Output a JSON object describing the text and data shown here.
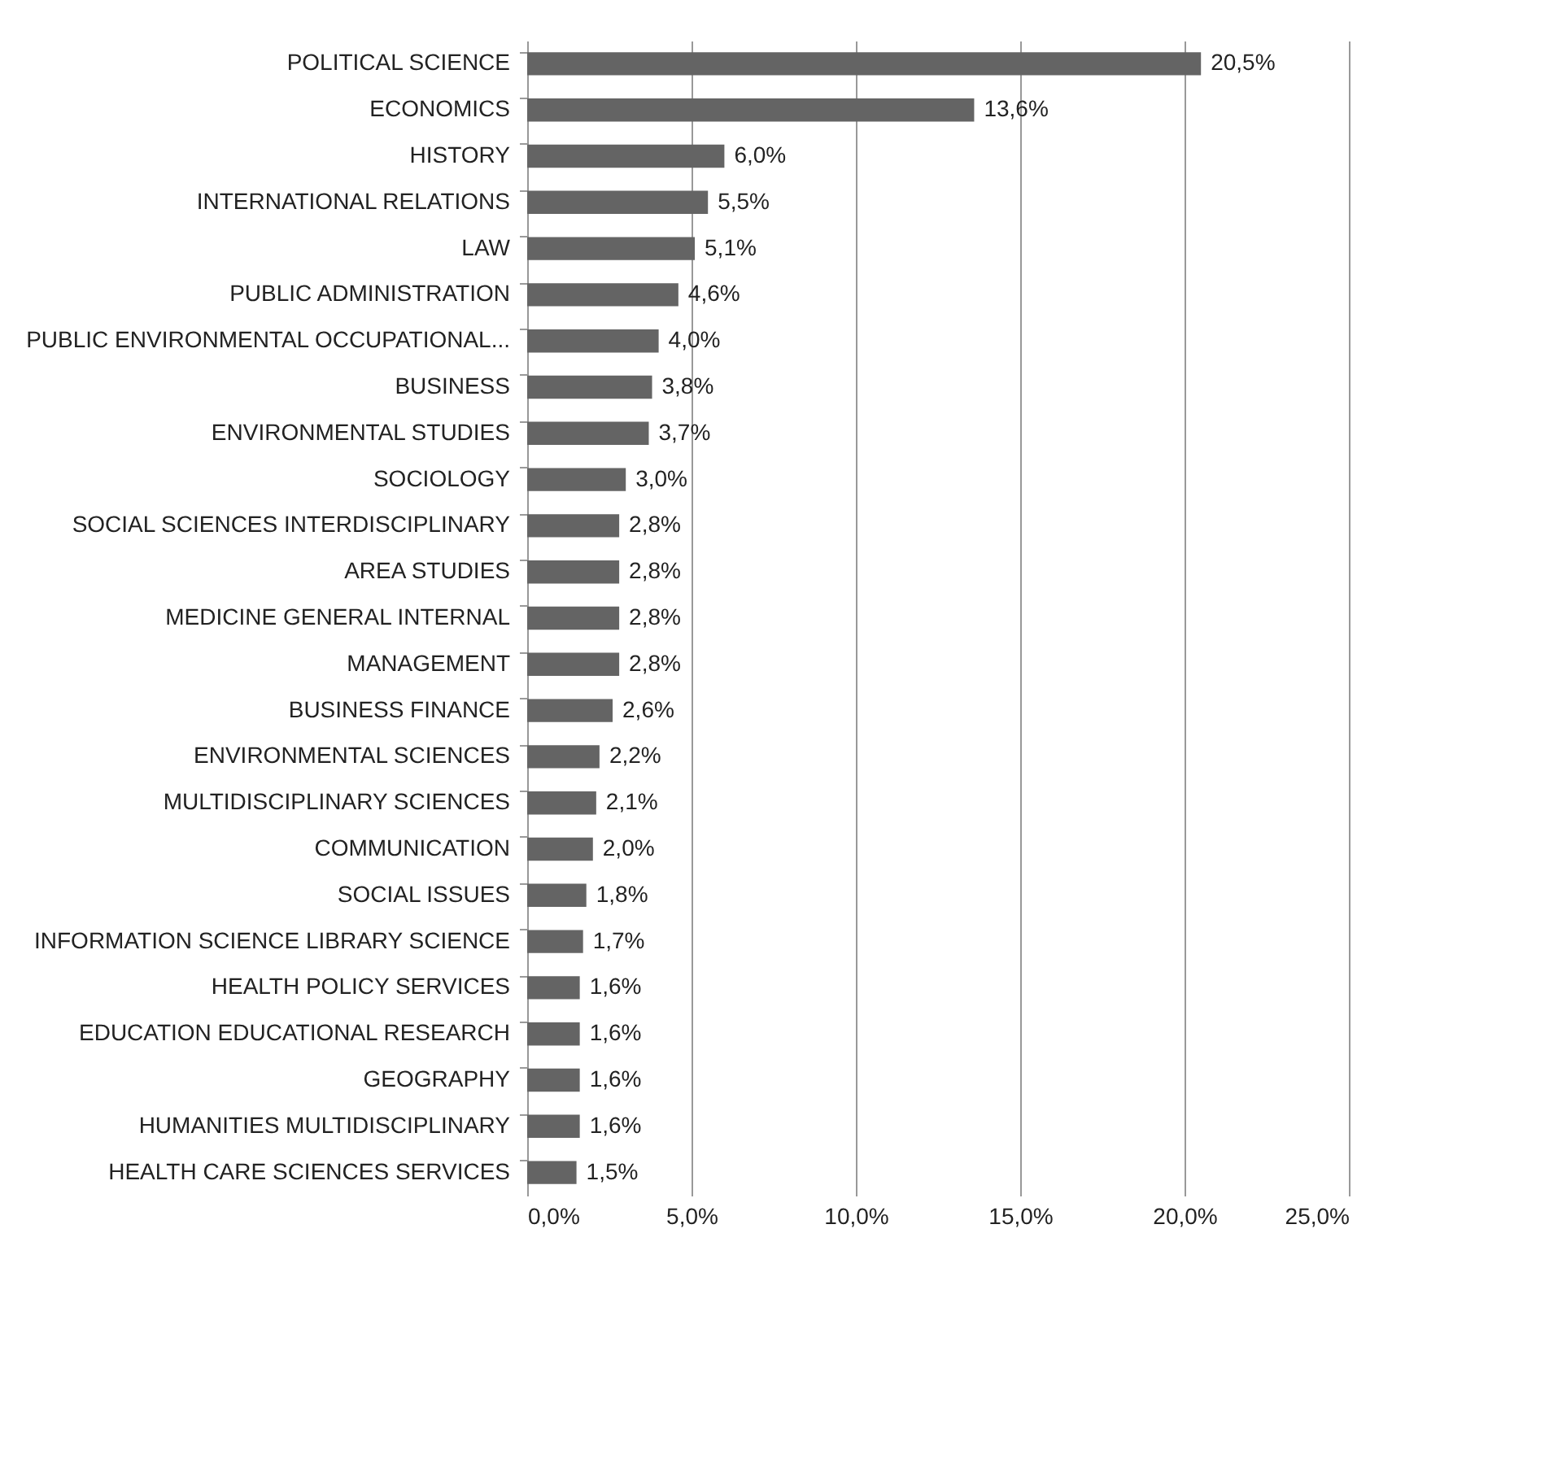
{
  "chart_data": {
    "type": "bar",
    "orientation": "horizontal",
    "color": "#646464",
    "grid": "x",
    "categories": [
      "POLITICAL SCIENCE",
      "ECONOMICS",
      "HISTORY",
      "INTERNATIONAL RELATIONS",
      "LAW",
      "PUBLIC ADMINISTRATION",
      "PUBLIC ENVIRONMENTAL OCCUPATIONAL...",
      "BUSINESS",
      "ENVIRONMENTAL STUDIES",
      "SOCIOLOGY",
      "SOCIAL SCIENCES INTERDISCIPLINARY",
      "AREA STUDIES",
      "MEDICINE GENERAL INTERNAL",
      "MANAGEMENT",
      "BUSINESS FINANCE",
      "ENVIRONMENTAL SCIENCES",
      "MULTIDISCIPLINARY SCIENCES",
      "COMMUNICATION",
      "SOCIAL ISSUES",
      "INFORMATION SCIENCE LIBRARY SCIENCE",
      "HEALTH POLICY SERVICES",
      "EDUCATION EDUCATIONAL RESEARCH",
      "GEOGRAPHY",
      "HUMANITIES MULTIDISCIPLINARY",
      "HEALTH CARE SCIENCES SERVICES"
    ],
    "values": [
      20.5,
      13.6,
      6.0,
      5.5,
      5.1,
      4.6,
      4.0,
      3.8,
      3.7,
      3.0,
      2.8,
      2.8,
      2.8,
      2.8,
      2.6,
      2.2,
      2.1,
      2.0,
      1.8,
      1.7,
      1.6,
      1.6,
      1.6,
      1.6,
      1.5
    ],
    "value_labels": [
      "20,5%",
      "13,6%",
      "6,0%",
      "5,5%",
      "5,1%",
      "4,6%",
      "4,0%",
      "3,8%",
      "3,7%",
      "3,0%",
      "2,8%",
      "2,8%",
      "2,8%",
      "2,8%",
      "2,6%",
      "2,2%",
      "2,1%",
      "2,0%",
      "1,8%",
      "1,7%",
      "1,6%",
      "1,6%",
      "1,6%",
      "1,6%",
      "1,5%"
    ],
    "xlim": [
      0,
      25
    ],
    "xticks": [
      {
        "value": 0,
        "label": "0,0%"
      },
      {
        "value": 5,
        "label": "5,0%"
      },
      {
        "value": 10,
        "label": "10,0%"
      },
      {
        "value": 15,
        "label": "15,0%"
      },
      {
        "value": 20,
        "label": "20,0%"
      },
      {
        "value": 25,
        "label": "25,0%"
      }
    ]
  }
}
